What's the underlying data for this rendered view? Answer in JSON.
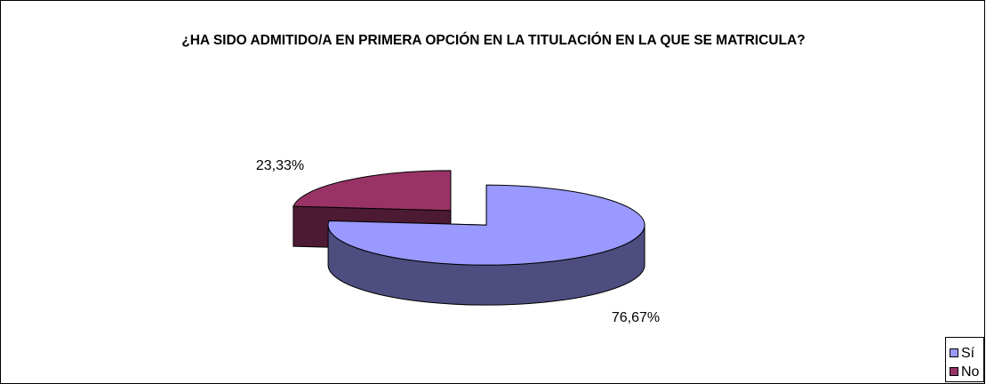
{
  "chart_data": {
    "type": "pie",
    "title": "¿HA SIDO ADMITIDO/A EN PRIMERA OPCIÓN EN LA TITULACIÓN EN LA QUE SE MATRICULA?",
    "categories": [
      "Sí",
      "No"
    ],
    "values": [
      76.67,
      23.33
    ],
    "value_labels": [
      "76,67%",
      "23,33%"
    ],
    "colors": [
      "#9999ff",
      "#993366"
    ],
    "legend": "right"
  }
}
